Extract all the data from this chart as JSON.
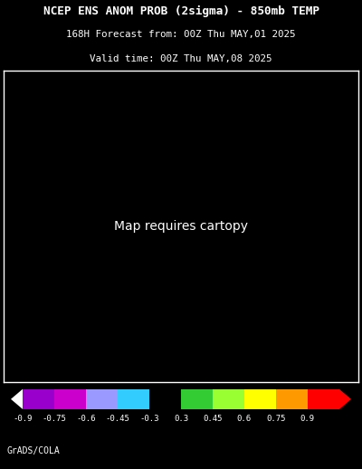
{
  "title_line1": "NCEP ENS ANOM PROB (2sigma) - 850mb TEMP",
  "title_line2": "168H Forecast from: 00Z Thu MAY,01 2025",
  "title_line3": "Valid time: 00Z Thu MAY,08 2025",
  "background_color": "#000000",
  "coastline_color": "#ffffff",
  "title_color": "#ffffff",
  "colorbar_colors": [
    "#9900cc",
    "#cc00cc",
    "#9999ff",
    "#33ccff",
    "#000000",
    "#33cc33",
    "#99ff33",
    "#ffff00",
    "#ff9900",
    "#ff0000"
  ],
  "colorbar_labels": [
    "-0.9",
    "-0.75",
    "-0.6",
    "-0.45",
    "-0.3",
    "0.3",
    "0.45",
    "0.6",
    "0.75",
    "0.9"
  ],
  "footer_text": "GrADS/COLA",
  "footer_color": "#ffffff",
  "map_extent": [
    -30,
    70,
    25,
    75
  ],
  "fig_width": 4.0,
  "fig_height": 5.18,
  "fig_dpi": 100
}
